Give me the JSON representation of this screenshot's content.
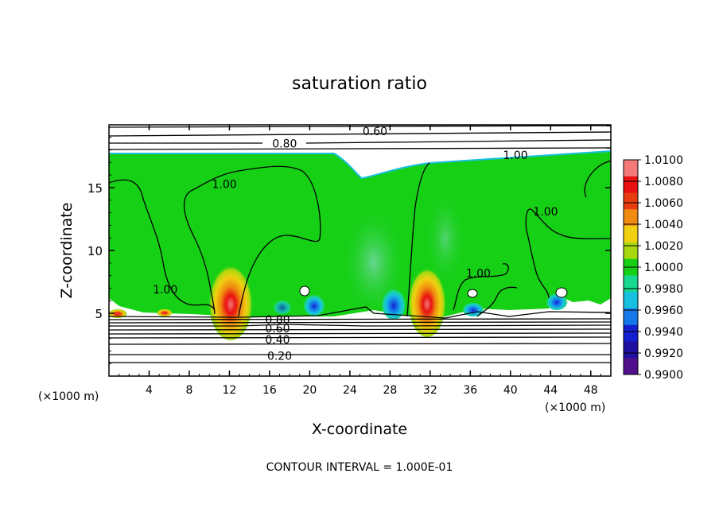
{
  "chart_data": {
    "type": "heatmap",
    "title": "saturation ratio",
    "xlabel": "X-coordinate",
    "ylabel": "Z-coordinate",
    "x_unit_left": "(×1000 m)",
    "x_unit_right": "(×1000 m)",
    "x_ticks": [
      4,
      8,
      12,
      16,
      20,
      24,
      28,
      32,
      36,
      40,
      44,
      48
    ],
    "y_ticks": [
      5,
      10,
      15
    ],
    "xlim": [
      0,
      50
    ],
    "ylim": [
      0,
      20
    ],
    "footer": "CONTOUR INTERVAL = 1.000E-01",
    "colorbar": {
      "labels": [
        "1.0100",
        "1.0080",
        "1.0060",
        "1.0040",
        "1.0020",
        "1.0000",
        "0.9980",
        "0.9960",
        "0.9940",
        "0.9920",
        "0.9900"
      ],
      "colors": [
        "#f47a7a",
        "#e81010",
        "#e83c10",
        "#f08a10",
        "#f0d010",
        "#a8d810",
        "#16d016",
        "#18d890",
        "#18c0e0",
        "#1478e8",
        "#1420d0",
        "#2010a0",
        "#50108c"
      ]
    },
    "contour_labels": [
      {
        "text": "0.60",
        "x": 26.5,
        "y": 19.5
      },
      {
        "text": "0.80",
        "x": 17.5,
        "y": 18.5
      },
      {
        "text": "1.00",
        "x": 40.5,
        "y": 17.6
      },
      {
        "text": "1.00",
        "x": 11.5,
        "y": 15.3
      },
      {
        "text": "1.00",
        "x": 43.5,
        "y": 13.1
      },
      {
        "text": "1.00",
        "x": 36.8,
        "y": 8.2
      },
      {
        "text": "1.00",
        "x": 5.6,
        "y": 6.9
      },
      {
        "text": "0.80",
        "x": 16.8,
        "y": 4.5
      },
      {
        "text": "0.60",
        "x": 16.8,
        "y": 3.8
      },
      {
        "text": "0.40",
        "x": 16.8,
        "y": 2.9
      },
      {
        "text": "0.20",
        "x": 17.0,
        "y": 1.6
      }
    ]
  }
}
